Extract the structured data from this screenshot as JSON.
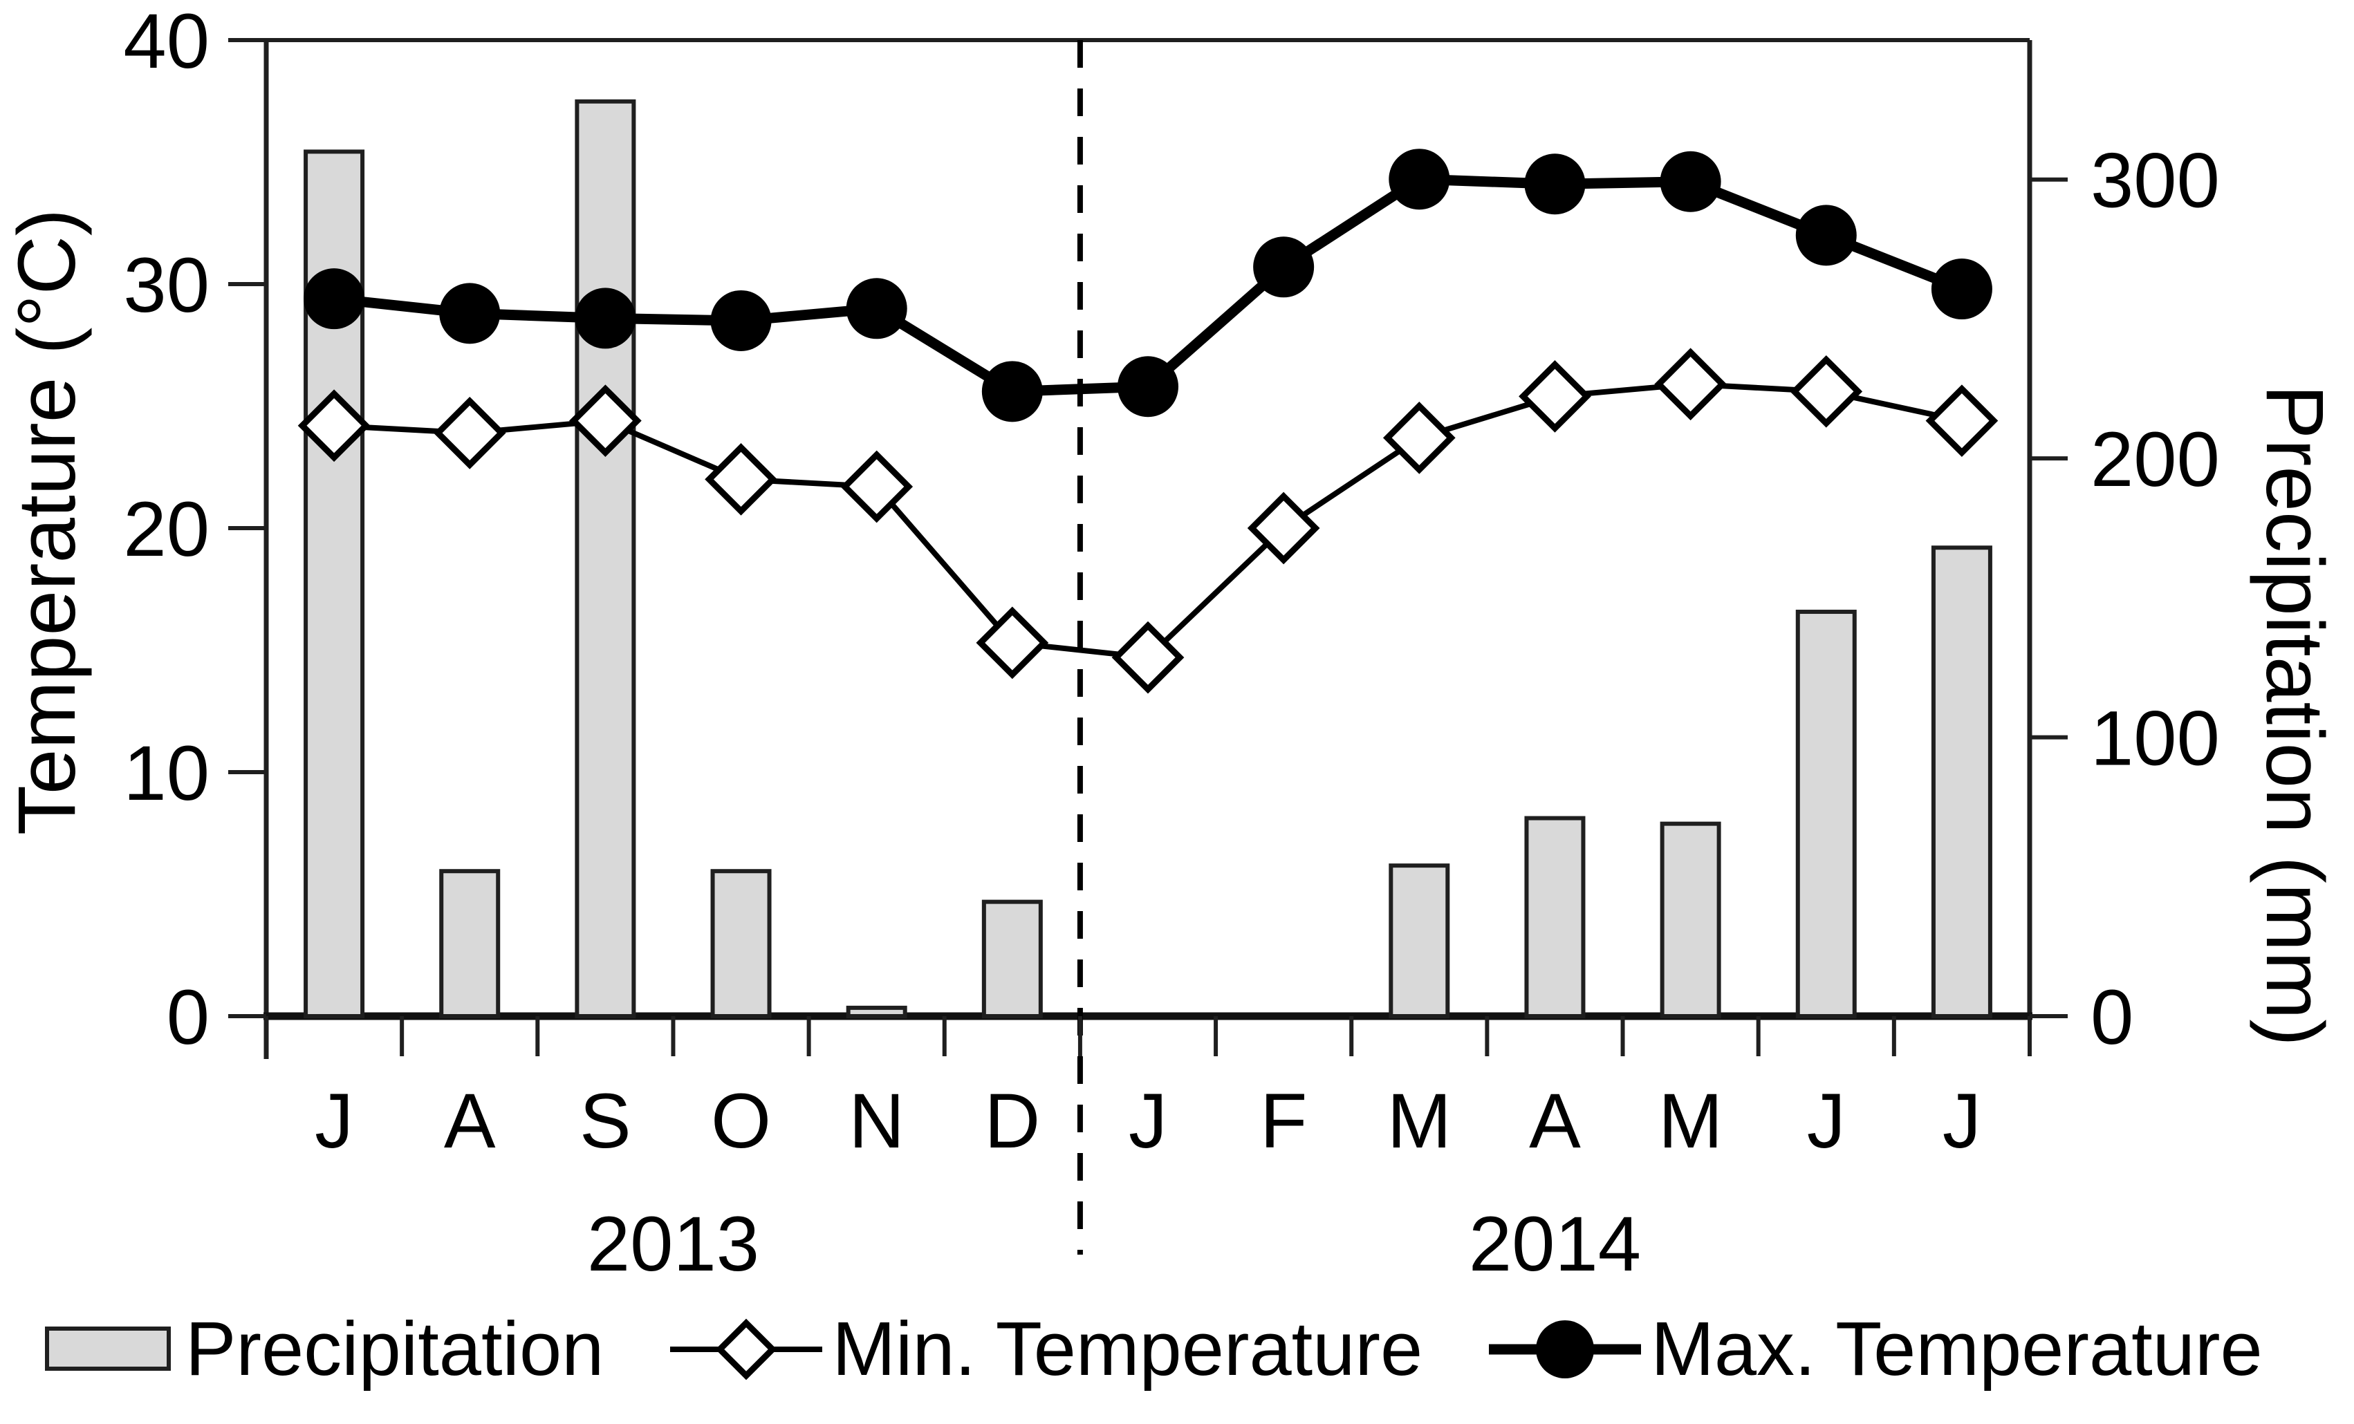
{
  "chart_data": {
    "type": "combo-bar-line",
    "title": "",
    "categories": [
      "J",
      "A",
      "S",
      "O",
      "N",
      "D",
      "J",
      "F",
      "M",
      "A",
      "M",
      "J",
      "J"
    ],
    "year_groups": [
      {
        "label": "2013",
        "start": 0,
        "end": 5
      },
      {
        "label": "2014",
        "start": 6,
        "end": 12
      }
    ],
    "series": [
      {
        "name": "Precipitation",
        "type": "bar",
        "axis": "right",
        "marker": "gray-bar",
        "values": [
          310,
          52,
          328,
          52,
          3,
          41,
          0,
          0,
          54,
          71,
          69,
          145,
          168
        ]
      },
      {
        "name": "Min. Temperature",
        "type": "line",
        "axis": "left",
        "marker": "open-diamond",
        "values": [
          24.2,
          23.9,
          24.4,
          22.0,
          21.7,
          15.3,
          14.7,
          20.0,
          23.7,
          25.4,
          25.9,
          25.6,
          24.4
        ]
      },
      {
        "name": "Max. Temperature",
        "type": "line",
        "axis": "left",
        "marker": "filled-circle",
        "values": [
          29.4,
          28.8,
          28.6,
          28.5,
          29.0,
          25.6,
          25.8,
          30.7,
          34.3,
          34.1,
          34.2,
          32.0,
          29.8
        ]
      }
    ],
    "left_axis": {
      "label": "Temperature (°C)",
      "min": 0,
      "max": 40,
      "ticks": [
        0,
        10,
        20,
        30,
        40
      ]
    },
    "right_axis": {
      "label": "Precipitation (mm)",
      "min": 0,
      "max": 350,
      "ticks": [
        0,
        100,
        200,
        300
      ]
    },
    "separator": {
      "style": "dashed",
      "position": "between-years"
    },
    "grid": false,
    "legend_position": "bottom"
  },
  "colors": {
    "bar_fill": "#d9d9d9",
    "bar_stroke": "#1f1f1f",
    "line": "#000000",
    "axis": "#1f1f1f",
    "text": "#000000",
    "background": "#ffffff"
  }
}
